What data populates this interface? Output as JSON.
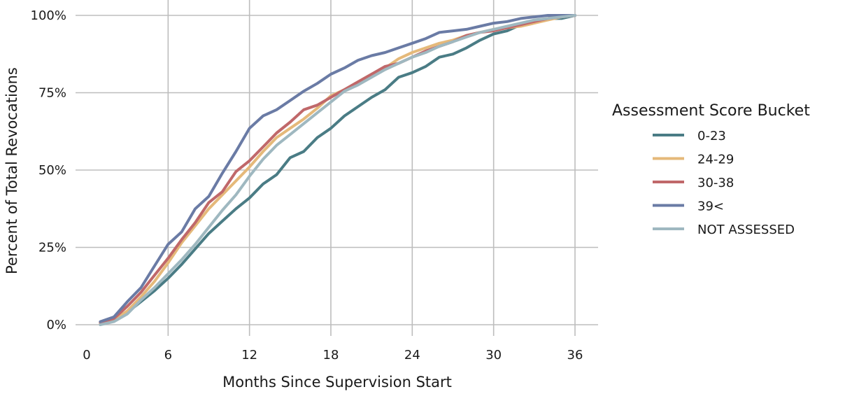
{
  "chart_data": {
    "type": "line",
    "xlabel": "Months Since Supervision Start",
    "ylabel": "Percent of Total Revocations",
    "xlim": [
      0,
      36
    ],
    "ylim": [
      0,
      100
    ],
    "x_ticks": [
      0,
      6,
      12,
      18,
      24,
      30,
      36
    ],
    "x_tick_labels": [
      "0",
      "6",
      "12",
      "18",
      "24",
      "30",
      "36"
    ],
    "y_ticks": [
      0,
      25,
      50,
      75,
      100
    ],
    "y_tick_labels": [
      "0%",
      "25%",
      "50%",
      "75%",
      "100%"
    ],
    "grid": true,
    "legend": {
      "title": "Assessment Score Bucket",
      "position": "right"
    },
    "x": [
      1,
      2,
      3,
      4,
      5,
      6,
      7,
      8,
      9,
      10,
      11,
      12,
      13,
      14,
      15,
      16,
      17,
      18,
      19,
      20,
      21,
      22,
      23,
      24,
      25,
      26,
      27,
      28,
      29,
      30,
      31,
      32,
      33,
      34,
      35,
      36
    ],
    "series": [
      {
        "name": "0-23",
        "color": "#4a7c85",
        "values": [
          0.5,
          1.5,
          4,
          7.5,
          11,
          15,
          19.5,
          24.5,
          29.5,
          33.5,
          37.5,
          41,
          45.5,
          48.5,
          54,
          56,
          60.5,
          63.5,
          67.5,
          70.5,
          73.5,
          76,
          80,
          81.5,
          83.5,
          86.5,
          87.5,
          89.5,
          92,
          94,
          95,
          97,
          98,
          99,
          99,
          100
        ]
      },
      {
        "name": "24-29",
        "color": "#e5b97a",
        "values": [
          0.5,
          1.5,
          4.5,
          9,
          14,
          20,
          26.5,
          32,
          37.5,
          42,
          46.5,
          51,
          56,
          60.5,
          63.5,
          66.5,
          70,
          74,
          76,
          78.5,
          81,
          83,
          86,
          88,
          89.5,
          91,
          92,
          93.5,
          94.5,
          95.5,
          96,
          96.5,
          97.5,
          98.5,
          99.5,
          100
        ]
      },
      {
        "name": "30-38",
        "color": "#c0686a",
        "values": [
          0.8,
          2,
          6,
          10.5,
          16,
          21.5,
          27.5,
          33,
          39.5,
          43,
          49.5,
          53,
          57.5,
          62,
          65.5,
          69.5,
          71,
          73.5,
          76,
          78.5,
          81,
          83.5,
          84.5,
          86.5,
          88.5,
          90,
          91.5,
          93.5,
          94.5,
          95,
          96,
          97,
          98,
          99,
          99.5,
          100
        ]
      },
      {
        "name": "39<",
        "color": "#6a7ba5",
        "values": [
          1,
          2.5,
          7.5,
          12,
          19,
          26,
          30,
          37.5,
          41.5,
          49,
          56,
          63.5,
          67.5,
          69.5,
          72.5,
          75.5,
          78,
          81,
          83,
          85.5,
          87,
          88,
          89.5,
          91,
          92.5,
          94.5,
          95,
          95.5,
          96.5,
          97.5,
          98,
          99,
          99.5,
          100,
          100,
          100
        ]
      },
      {
        "name": "NOT ASSESSED",
        "color": "#9fb8c0",
        "values": [
          0,
          1,
          3.5,
          8,
          12,
          16.5,
          21,
          26,
          31.5,
          37,
          42,
          48,
          53.5,
          58,
          61.5,
          65,
          68.5,
          72,
          75.5,
          77.5,
          80,
          82.5,
          84.5,
          86.5,
          88,
          90,
          91.5,
          93,
          94.5,
          95.5,
          96.5,
          97.5,
          98.5,
          99,
          99.5,
          100
        ]
      }
    ]
  }
}
